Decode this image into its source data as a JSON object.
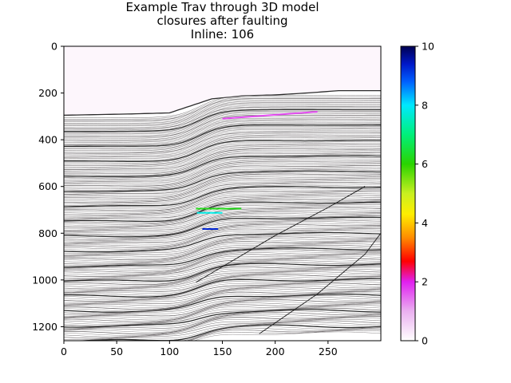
{
  "chart_data": {
    "type": "heatmap",
    "title": [
      "Example Trav through 3D model",
      "closures after faulting",
      "Inline: 106"
    ],
    "xlabel": "",
    "ylabel": "",
    "xlim": [
      0,
      300
    ],
    "ylim": [
      1260,
      0
    ],
    "y_inverted": true,
    "x_ticks": [
      0,
      50,
      100,
      150,
      200,
      250
    ],
    "y_ticks": [
      0,
      200,
      400,
      600,
      800,
      1000,
      1200
    ],
    "background": "horizon line image (grayscale seismic-style horizons)",
    "top_horizon": {
      "x": [
        0,
        60,
        100,
        120,
        140,
        170,
        200,
        230,
        260,
        300
      ],
      "y": [
        295,
        290,
        285,
        255,
        225,
        212,
        208,
        200,
        190,
        190
      ]
    },
    "faults": [
      {
        "x": [
          125,
          200,
          250,
          285
        ],
        "y": [
          1010,
          810,
          690,
          600
        ]
      },
      {
        "x": [
          185,
          240,
          285,
          300
        ],
        "y": [
          1230,
          1060,
          890,
          800
        ]
      }
    ],
    "closures": [
      {
        "value": 1.7,
        "x": [
          150,
          240
        ],
        "depth": [
          310,
          280
        ]
      },
      {
        "value": 6.2,
        "x": [
          125,
          168
        ],
        "depth": [
          695,
          695
        ]
      },
      {
        "value": 7.8,
        "x": [
          126,
          150
        ],
        "depth": [
          713,
          713
        ]
      },
      {
        "value": 9.3,
        "x": [
          131,
          146
        ],
        "depth": [
          782,
          782
        ]
      }
    ],
    "colorbar": {
      "colormap": "gist_ncar_r-like",
      "range": [
        0,
        10
      ],
      "ticks": [
        0,
        2,
        4,
        6,
        8,
        10
      ],
      "stops": [
        {
          "v": 0,
          "c": "#ffffff"
        },
        {
          "v": 1,
          "c": "#eab0f0"
        },
        {
          "v": 2,
          "c": "#e020f0"
        },
        {
          "v": 2.7,
          "c": "#ff0000"
        },
        {
          "v": 3.5,
          "c": "#ff8c00"
        },
        {
          "v": 4.3,
          "c": "#ffee00"
        },
        {
          "v": 5,
          "c": "#c8f020"
        },
        {
          "v": 6,
          "c": "#2ad400"
        },
        {
          "v": 7,
          "c": "#00f07a"
        },
        {
          "v": 8,
          "c": "#00e8ff"
        },
        {
          "v": 8.8,
          "c": "#0060ff"
        },
        {
          "v": 9.4,
          "c": "#0018c8"
        },
        {
          "v": 10,
          "c": "#000050"
        }
      ]
    }
  }
}
